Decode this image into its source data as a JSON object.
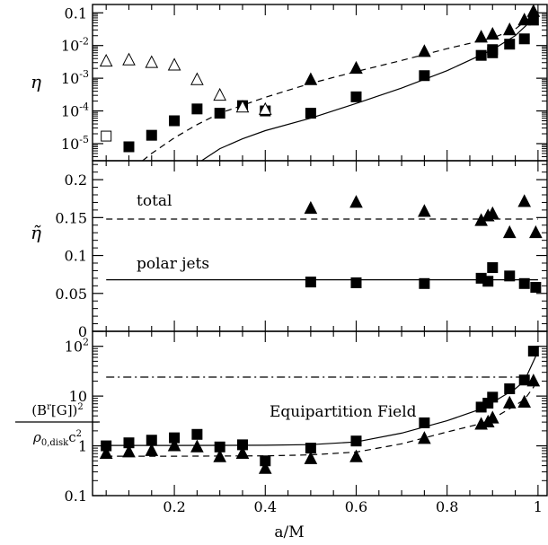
{
  "chart_data": [
    {
      "type": "scatter",
      "ylabel": "η",
      "yscale": "log",
      "xlim": [
        0.02,
        1.02
      ],
      "ylim": [
        3e-06,
        0.18
      ],
      "yticks": [
        {
          "v": 0.1,
          "label": "0.1"
        },
        {
          "v": 0.01,
          "label": "10",
          "exp": "-2"
        },
        {
          "v": 0.001,
          "label": "10",
          "exp": "-3"
        },
        {
          "v": 0.0001,
          "label": "10",
          "exp": "-4"
        },
        {
          "v": 1e-05,
          "label": "10",
          "exp": "-5"
        }
      ],
      "series": [
        {
          "marker": "filled-square",
          "points": [
            [
              0.1,
              8e-06
            ],
            [
              0.15,
              1.8e-05
            ],
            [
              0.2,
              5e-05
            ],
            [
              0.25,
              0.000115
            ],
            [
              0.3,
              8.5e-05
            ],
            [
              0.35,
              0.000145
            ],
            [
              0.4,
              0.0001
            ],
            [
              0.5,
              8.5e-05
            ],
            [
              0.6,
              0.00027
            ],
            [
              0.75,
              0.0012
            ],
            [
              0.875,
              0.005
            ],
            [
              0.9,
              0.0075
            ],
            [
              0.9,
              0.006
            ],
            [
              0.9375,
              0.011
            ],
            [
              0.97,
              0.016
            ],
            [
              0.99,
              0.06
            ]
          ]
        },
        {
          "marker": "filled-triangle",
          "points": [
            [
              0.5,
              0.0009
            ],
            [
              0.6,
              0.002
            ],
            [
              0.75,
              0.0065
            ],
            [
              0.875,
              0.018
            ],
            [
              0.9,
              0.022
            ],
            [
              0.9375,
              0.03
            ],
            [
              0.97,
              0.06
            ],
            [
              0.99,
              0.11
            ]
          ]
        },
        {
          "marker": "open-square",
          "points": [
            [
              0.05,
              1.7e-05
            ]
          ]
        },
        {
          "marker": "open-triangle",
          "points": [
            [
              0.05,
              0.0033
            ],
            [
              0.1,
              0.0036
            ],
            [
              0.15,
              0.003
            ],
            [
              0.2,
              0.0025
            ],
            [
              0.25,
              0.0009
            ],
            [
              0.3,
              0.0003
            ],
            [
              0.35,
              0.00013
            ],
            [
              0.4,
              0.00011
            ]
          ]
        },
        {
          "style": "dashed",
          "points": [
            [
              0.13,
              3e-06
            ],
            [
              0.15,
              5e-06
            ],
            [
              0.2,
              1.5e-05
            ],
            [
              0.25,
              3.8e-05
            ],
            [
              0.3,
              8.5e-05
            ],
            [
              0.4,
              0.00026
            ],
            [
              0.5,
              0.0007
            ],
            [
              0.6,
              0.0016
            ],
            [
              0.7,
              0.0035
            ],
            [
              0.8,
              0.008
            ],
            [
              0.9,
              0.017
            ],
            [
              0.95,
              0.032
            ],
            [
              1.0,
              0.11
            ]
          ]
        },
        {
          "style": "solid",
          "points": [
            [
              0.26,
              3e-06
            ],
            [
              0.3,
              7e-06
            ],
            [
              0.35,
              1.4e-05
            ],
            [
              0.4,
              2.5e-05
            ],
            [
              0.5,
              6e-05
            ],
            [
              0.6,
              0.00017
            ],
            [
              0.7,
              0.0005
            ],
            [
              0.8,
              0.0017
            ],
            [
              0.9,
              0.0075
            ],
            [
              0.95,
              0.02
            ],
            [
              1.0,
              0.09
            ]
          ]
        }
      ]
    },
    {
      "type": "scatter",
      "ylabel": "η̃",
      "yscale": "linear",
      "xlim": [
        0.02,
        1.02
      ],
      "ylim": [
        0,
        0.225
      ],
      "yticks": [
        {
          "v": 0.2,
          "label": "0.2"
        },
        {
          "v": 0.15,
          "label": "0.15"
        },
        {
          "v": 0.1,
          "label": "0.1"
        },
        {
          "v": 0.05,
          "label": "0.05"
        },
        {
          "v": 0,
          "label": "0"
        }
      ],
      "annotations": [
        "total",
        "polar jets"
      ],
      "series": [
        {
          "marker": "filled-triangle",
          "points": [
            [
              0.5,
              0.162
            ],
            [
              0.6,
              0.17
            ],
            [
              0.75,
              0.158
            ],
            [
              0.875,
              0.146
            ],
            [
              0.89,
              0.152
            ],
            [
              0.9,
              0.155
            ],
            [
              0.9375,
              0.13
            ],
            [
              0.97,
              0.171
            ],
            [
              0.995,
              0.13
            ]
          ]
        },
        {
          "marker": "filled-square",
          "points": [
            [
              0.5,
              0.065
            ],
            [
              0.6,
              0.064
            ],
            [
              0.75,
              0.063
            ],
            [
              0.875,
              0.07
            ],
            [
              0.89,
              0.066
            ],
            [
              0.9,
              0.084
            ],
            [
              0.9375,
              0.073
            ],
            [
              0.97,
              0.063
            ],
            [
              0.995,
              0.058
            ]
          ]
        },
        {
          "style": "dashed",
          "y": 0.148
        },
        {
          "style": "solid",
          "y": 0.068
        }
      ]
    },
    {
      "type": "scatter",
      "ylabel": "(B^r[G])^2 / ρ_0,disk c^2",
      "yscale": "log",
      "xlim": [
        0.02,
        1.02
      ],
      "ylim": [
        0.1,
        200
      ],
      "yticks": [
        {
          "v": 100,
          "label": "10",
          "exp": "2"
        },
        {
          "v": 10,
          "label": "10"
        },
        {
          "v": 1,
          "label": "1"
        },
        {
          "v": 0.1,
          "label": "0.1"
        }
      ],
      "annotations": [
        "Equipartition Field"
      ],
      "series": [
        {
          "marker": "filled-square",
          "points": [
            [
              0.05,
              1.0
            ],
            [
              0.1,
              1.15
            ],
            [
              0.15,
              1.3
            ],
            [
              0.2,
              1.45
            ],
            [
              0.25,
              1.7
            ],
            [
              0.3,
              0.95
            ],
            [
              0.35,
              1.05
            ],
            [
              0.4,
              0.5
            ],
            [
              0.5,
              0.9
            ],
            [
              0.6,
              1.25
            ],
            [
              0.75,
              2.9
            ],
            [
              0.875,
              6.0
            ],
            [
              0.89,
              7.2
            ],
            [
              0.9,
              9.5
            ],
            [
              0.9375,
              14.0
            ],
            [
              0.97,
              21.0
            ],
            [
              0.99,
              80.0
            ]
          ]
        },
        {
          "marker": "filled-triangle",
          "points": [
            [
              0.05,
              0.7
            ],
            [
              0.1,
              0.75
            ],
            [
              0.15,
              0.8
            ],
            [
              0.2,
              1.0
            ],
            [
              0.25,
              0.95
            ],
            [
              0.3,
              0.6
            ],
            [
              0.35,
              0.7
            ],
            [
              0.4,
              0.35
            ],
            [
              0.5,
              0.55
            ],
            [
              0.6,
              0.6
            ],
            [
              0.75,
              1.4
            ],
            [
              0.875,
              2.7
            ],
            [
              0.89,
              3.0
            ],
            [
              0.9,
              3.6
            ],
            [
              0.9375,
              7.2
            ],
            [
              0.97,
              7.5
            ],
            [
              0.99,
              20.0
            ]
          ]
        },
        {
          "style": "solid",
          "points": [
            [
              0.05,
              1.02
            ],
            [
              0.2,
              1.02
            ],
            [
              0.4,
              1.03
            ],
            [
              0.5,
              1.06
            ],
            [
              0.6,
              1.2
            ],
            [
              0.7,
              1.8
            ],
            [
              0.8,
              3.2
            ],
            [
              0.875,
              5.5
            ],
            [
              0.9,
              7.5
            ],
            [
              0.95,
              14
            ],
            [
              0.97,
              20
            ],
            [
              0.99,
              50
            ],
            [
              1.0,
              80
            ]
          ]
        },
        {
          "style": "dashed",
          "points": [
            [
              0.05,
              0.62
            ],
            [
              0.2,
              0.62
            ],
            [
              0.4,
              0.63
            ],
            [
              0.5,
              0.66
            ],
            [
              0.6,
              0.75
            ],
            [
              0.7,
              1.1
            ],
            [
              0.8,
              1.9
            ],
            [
              0.875,
              2.8
            ],
            [
              0.9,
              3.5
            ],
            [
              0.95,
              6.5
            ],
            [
              0.97,
              8.5
            ],
            [
              0.99,
              15
            ],
            [
              1.0,
              22
            ]
          ]
        },
        {
          "style": "dashdot",
          "y": 24
        }
      ]
    }
  ],
  "xaxis": {
    "label": "a/M",
    "ticks": [
      {
        "v": 0.2,
        "label": "0.2"
      },
      {
        "v": 0.4,
        "label": "0.4"
      },
      {
        "v": 0.6,
        "label": "0.6"
      },
      {
        "v": 0.8,
        "label": "0.8"
      },
      {
        "v": 1,
        "label": "1"
      }
    ]
  }
}
